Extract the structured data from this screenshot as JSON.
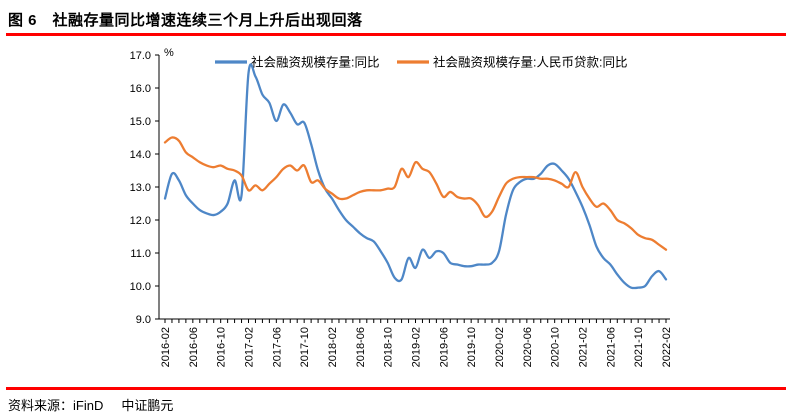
{
  "title": "图 6　社融存量同比增速连续三个月上升后出现回落",
  "footer": {
    "source_label": "资料来源：iFinD",
    "brand": "中证鹏元"
  },
  "colors": {
    "rule": "#ff0000",
    "axis": "#000000",
    "series1": "#4e87c7",
    "series2": "#ed7d31"
  },
  "chart_data": {
    "type": "line",
    "title": "",
    "xlabel": "",
    "ylabel": "",
    "unit_label": "%",
    "grid": false,
    "legend_position": "top",
    "y_axis": {
      "min": 9.0,
      "max": 17.0,
      "step": 1.0,
      "tick_decimals": 1
    },
    "x": [
      "2016-02",
      "2016-03",
      "2016-04",
      "2016-05",
      "2016-06",
      "2016-07",
      "2016-08",
      "2016-09",
      "2016-10",
      "2016-11",
      "2016-12",
      "2017-01",
      "2017-02",
      "2017-03",
      "2017-04",
      "2017-05",
      "2017-06",
      "2017-07",
      "2017-08",
      "2017-09",
      "2017-10",
      "2017-11",
      "2017-12",
      "2018-01",
      "2018-02",
      "2018-03",
      "2018-04",
      "2018-05",
      "2018-06",
      "2018-07",
      "2018-08",
      "2018-09",
      "2018-10",
      "2018-11",
      "2018-12",
      "2019-01",
      "2019-02",
      "2019-03",
      "2019-04",
      "2019-05",
      "2019-06",
      "2019-07",
      "2019-08",
      "2019-09",
      "2019-10",
      "2019-11",
      "2019-12",
      "2020-01",
      "2020-02",
      "2020-03",
      "2020-04",
      "2020-05",
      "2020-06",
      "2020-07",
      "2020-08",
      "2020-09",
      "2020-10",
      "2020-11",
      "2020-12",
      "2021-01",
      "2021-02",
      "2021-03",
      "2021-04",
      "2021-05",
      "2021-06",
      "2021-07",
      "2021-08",
      "2021-09",
      "2021-10",
      "2021-11",
      "2021-12",
      "2022-01",
      "2022-02"
    ],
    "x_label_every": 4,
    "series": [
      {
        "name": "社会融资规模存量:同比",
        "color": "#4e87c7",
        "values": [
          12.65,
          13.4,
          13.2,
          12.75,
          12.5,
          12.3,
          12.2,
          12.15,
          12.25,
          12.5,
          13.2,
          12.75,
          16.45,
          16.35,
          15.8,
          15.55,
          15.0,
          15.5,
          15.25,
          14.9,
          14.95,
          14.3,
          13.5,
          12.95,
          12.65,
          12.3,
          12.0,
          11.8,
          11.6,
          11.45,
          11.35,
          11.05,
          10.7,
          10.25,
          10.2,
          10.85,
          10.55,
          11.1,
          10.85,
          11.05,
          11.0,
          10.7,
          10.65,
          10.6,
          10.6,
          10.65,
          10.65,
          10.7,
          11.05,
          12.15,
          12.9,
          13.15,
          13.25,
          13.25,
          13.4,
          13.65,
          13.7,
          13.5,
          13.25,
          12.85,
          12.4,
          11.85,
          11.2,
          10.85,
          10.65,
          10.35,
          10.1,
          9.95,
          9.95,
          10.0,
          10.3,
          10.45,
          10.2
        ]
      },
      {
        "name": "社会融资规模存量:人民币贷款:同比",
        "color": "#ed7d31",
        "values": [
          14.35,
          14.5,
          14.4,
          14.05,
          13.9,
          13.75,
          13.65,
          13.6,
          13.65,
          13.55,
          13.5,
          13.35,
          12.9,
          13.05,
          12.9,
          13.1,
          13.3,
          13.55,
          13.65,
          13.5,
          13.65,
          13.15,
          13.2,
          12.95,
          12.8,
          12.65,
          12.65,
          12.75,
          12.85,
          12.9,
          12.9,
          12.9,
          12.95,
          13.0,
          13.55,
          13.3,
          13.75,
          13.55,
          13.45,
          13.1,
          12.7,
          12.85,
          12.7,
          12.65,
          12.65,
          12.45,
          12.1,
          12.25,
          12.7,
          13.1,
          13.25,
          13.3,
          13.3,
          13.3,
          13.25,
          13.25,
          13.2,
          13.1,
          13.0,
          13.45,
          13.0,
          12.65,
          12.4,
          12.5,
          12.3,
          12.0,
          11.9,
          11.75,
          11.55,
          11.45,
          11.4,
          11.25,
          11.1
        ]
      }
    ]
  }
}
